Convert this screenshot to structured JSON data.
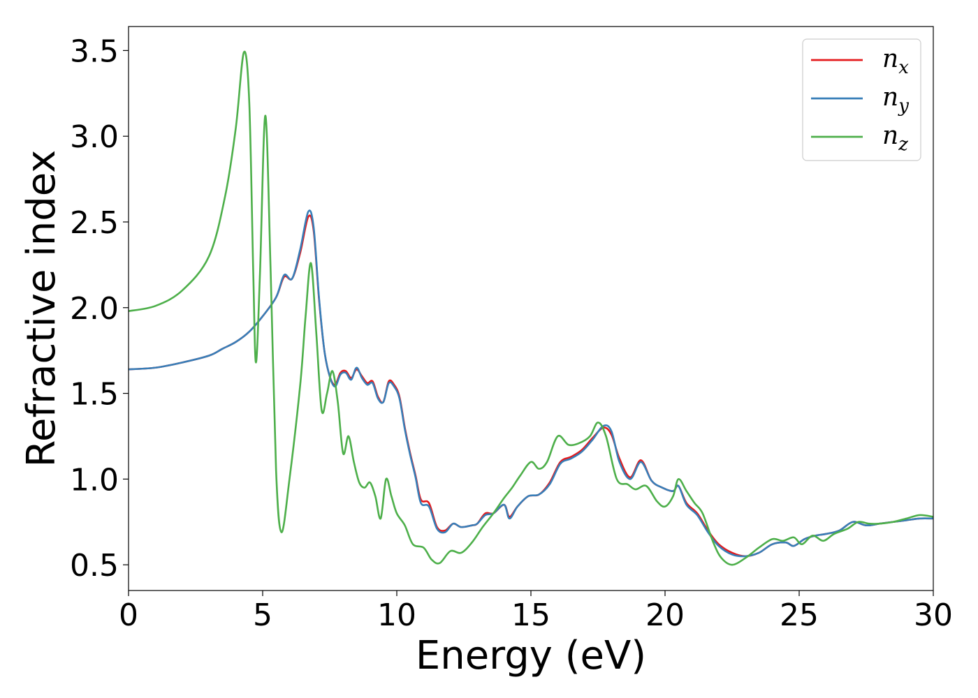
{
  "chart_data": {
    "type": "line",
    "xlabel": "Energy (eV)",
    "ylabel": "Refractive index",
    "xlim": [
      0,
      30
    ],
    "ylim": [
      0.35,
      3.64
    ],
    "xticks": [
      0,
      5,
      10,
      15,
      20,
      25,
      30
    ],
    "xtick_labels": [
      "0",
      "5",
      "10",
      "15",
      "20",
      "25",
      "30"
    ],
    "yticks": [
      0.5,
      1.0,
      1.5,
      2.0,
      2.5,
      3.0,
      3.5
    ],
    "ytick_labels": [
      "0.5",
      "1.0",
      "1.5",
      "2.0",
      "2.5",
      "3.0",
      "3.5"
    ],
    "grid": false,
    "legend_position": "top-right",
    "series": [
      {
        "name": "n_x",
        "legend_main": "n",
        "legend_sub": "x",
        "color": "#e41a1c",
        "points": [
          [
            0,
            1.64
          ],
          [
            1,
            1.65
          ],
          [
            2,
            1.68
          ],
          [
            3,
            1.72
          ],
          [
            3.5,
            1.76
          ],
          [
            4,
            1.8
          ],
          [
            4.5,
            1.86
          ],
          [
            5,
            1.95
          ],
          [
            5.5,
            2.06
          ],
          [
            5.8,
            2.18
          ],
          [
            6.1,
            2.17
          ],
          [
            6.4,
            2.32
          ],
          [
            6.7,
            2.53
          ],
          [
            6.9,
            2.45
          ],
          [
            7.1,
            2.05
          ],
          [
            7.3,
            1.75
          ],
          [
            7.5,
            1.6
          ],
          [
            7.7,
            1.55
          ],
          [
            7.9,
            1.62
          ],
          [
            8.1,
            1.63
          ],
          [
            8.3,
            1.59
          ],
          [
            8.5,
            1.64
          ],
          [
            8.7,
            1.6
          ],
          [
            8.9,
            1.56
          ],
          [
            9.1,
            1.57
          ],
          [
            9.3,
            1.48
          ],
          [
            9.5,
            1.45
          ],
          [
            9.7,
            1.57
          ],
          [
            9.9,
            1.55
          ],
          [
            10.1,
            1.48
          ],
          [
            10.3,
            1.3
          ],
          [
            10.5,
            1.15
          ],
          [
            10.7,
            1.02
          ],
          [
            10.9,
            0.88
          ],
          [
            11.2,
            0.86
          ],
          [
            11.5,
            0.72
          ],
          [
            11.8,
            0.7
          ],
          [
            12.1,
            0.74
          ],
          [
            12.4,
            0.72
          ],
          [
            12.8,
            0.73
          ],
          [
            13.0,
            0.74
          ],
          [
            13.3,
            0.8
          ],
          [
            13.6,
            0.8
          ],
          [
            14.0,
            0.85
          ],
          [
            14.2,
            0.78
          ],
          [
            14.5,
            0.84
          ],
          [
            14.9,
            0.9
          ],
          [
            15.3,
            0.91
          ],
          [
            15.7,
            0.98
          ],
          [
            16.1,
            1.1
          ],
          [
            16.5,
            1.13
          ],
          [
            16.9,
            1.17
          ],
          [
            17.3,
            1.24
          ],
          [
            17.7,
            1.3
          ],
          [
            18.0,
            1.26
          ],
          [
            18.3,
            1.12
          ],
          [
            18.7,
            1.01
          ],
          [
            19.1,
            1.11
          ],
          [
            19.5,
            0.99
          ],
          [
            19.9,
            0.95
          ],
          [
            20.3,
            0.93
          ],
          [
            20.5,
            0.96
          ],
          [
            20.8,
            0.86
          ],
          [
            21.2,
            0.8
          ],
          [
            21.6,
            0.7
          ],
          [
            22.0,
            0.62
          ],
          [
            22.5,
            0.57
          ],
          [
            23.0,
            0.55
          ],
          [
            23.5,
            0.57
          ],
          [
            24.0,
            0.62
          ],
          [
            24.5,
            0.63
          ],
          [
            24.8,
            0.61
          ],
          [
            25.2,
            0.65
          ],
          [
            25.6,
            0.67
          ],
          [
            26.0,
            0.68
          ],
          [
            26.5,
            0.7
          ],
          [
            27.0,
            0.75
          ],
          [
            27.5,
            0.73
          ],
          [
            28.0,
            0.74
          ],
          [
            28.5,
            0.75
          ],
          [
            29.0,
            0.76
          ],
          [
            29.5,
            0.77
          ],
          [
            30.0,
            0.77
          ]
        ]
      },
      {
        "name": "n_y",
        "legend_main": "n",
        "legend_sub": "y",
        "color": "#377eb8",
        "points": [
          [
            0,
            1.64
          ],
          [
            1,
            1.65
          ],
          [
            2,
            1.68
          ],
          [
            3,
            1.72
          ],
          [
            3.5,
            1.76
          ],
          [
            4,
            1.8
          ],
          [
            4.5,
            1.86
          ],
          [
            5,
            1.95
          ],
          [
            5.5,
            2.06
          ],
          [
            5.8,
            2.19
          ],
          [
            6.1,
            2.17
          ],
          [
            6.4,
            2.34
          ],
          [
            6.7,
            2.56
          ],
          [
            6.9,
            2.47
          ],
          [
            7.1,
            2.06
          ],
          [
            7.3,
            1.75
          ],
          [
            7.5,
            1.6
          ],
          [
            7.7,
            1.54
          ],
          [
            7.9,
            1.61
          ],
          [
            8.1,
            1.62
          ],
          [
            8.3,
            1.58
          ],
          [
            8.5,
            1.65
          ],
          [
            8.7,
            1.59
          ],
          [
            8.9,
            1.55
          ],
          [
            9.1,
            1.56
          ],
          [
            9.3,
            1.47
          ],
          [
            9.5,
            1.45
          ],
          [
            9.7,
            1.56
          ],
          [
            9.9,
            1.54
          ],
          [
            10.1,
            1.47
          ],
          [
            10.3,
            1.29
          ],
          [
            10.5,
            1.14
          ],
          [
            10.7,
            1.01
          ],
          [
            10.9,
            0.86
          ],
          [
            11.2,
            0.84
          ],
          [
            11.5,
            0.71
          ],
          [
            11.8,
            0.69
          ],
          [
            12.1,
            0.74
          ],
          [
            12.4,
            0.72
          ],
          [
            12.8,
            0.73
          ],
          [
            13.0,
            0.74
          ],
          [
            13.3,
            0.79
          ],
          [
            13.6,
            0.8
          ],
          [
            14.0,
            0.85
          ],
          [
            14.2,
            0.77
          ],
          [
            14.5,
            0.84
          ],
          [
            14.9,
            0.9
          ],
          [
            15.3,
            0.91
          ],
          [
            15.7,
            0.97
          ],
          [
            16.1,
            1.09
          ],
          [
            16.5,
            1.12
          ],
          [
            16.9,
            1.16
          ],
          [
            17.3,
            1.23
          ],
          [
            17.7,
            1.31
          ],
          [
            18.0,
            1.28
          ],
          [
            18.3,
            1.1
          ],
          [
            18.7,
            1.0
          ],
          [
            19.1,
            1.1
          ],
          [
            19.5,
            0.99
          ],
          [
            19.9,
            0.95
          ],
          [
            20.3,
            0.93
          ],
          [
            20.5,
            0.96
          ],
          [
            20.8,
            0.85
          ],
          [
            21.2,
            0.79
          ],
          [
            21.6,
            0.69
          ],
          [
            22.0,
            0.61
          ],
          [
            22.5,
            0.56
          ],
          [
            23.0,
            0.55
          ],
          [
            23.5,
            0.57
          ],
          [
            24.0,
            0.62
          ],
          [
            24.5,
            0.63
          ],
          [
            24.8,
            0.61
          ],
          [
            25.2,
            0.65
          ],
          [
            25.6,
            0.67
          ],
          [
            26.0,
            0.68
          ],
          [
            26.5,
            0.7
          ],
          [
            27.0,
            0.75
          ],
          [
            27.5,
            0.73
          ],
          [
            28.0,
            0.74
          ],
          [
            28.5,
            0.75
          ],
          [
            29.0,
            0.76
          ],
          [
            29.5,
            0.77
          ],
          [
            30.0,
            0.77
          ]
        ]
      },
      {
        "name": "n_z",
        "legend_main": "n",
        "legend_sub": "z",
        "color": "#4daf4a",
        "points": [
          [
            0,
            1.98
          ],
          [
            1,
            2.01
          ],
          [
            2,
            2.1
          ],
          [
            3,
            2.3
          ],
          [
            3.6,
            2.65
          ],
          [
            4.0,
            3.05
          ],
          [
            4.3,
            3.49
          ],
          [
            4.5,
            3.2
          ],
          [
            4.65,
            2.2
          ],
          [
            4.75,
            1.68
          ],
          [
            4.9,
            2.2
          ],
          [
            5.1,
            3.12
          ],
          [
            5.3,
            2.2
          ],
          [
            5.5,
            1.05
          ],
          [
            5.7,
            0.69
          ],
          [
            6.0,
            1.0
          ],
          [
            6.4,
            1.55
          ],
          [
            6.6,
            1.95
          ],
          [
            6.8,
            2.26
          ],
          [
            7.0,
            1.85
          ],
          [
            7.2,
            1.4
          ],
          [
            7.4,
            1.5
          ],
          [
            7.6,
            1.63
          ],
          [
            7.8,
            1.45
          ],
          [
            8.0,
            1.15
          ],
          [
            8.2,
            1.25
          ],
          [
            8.4,
            1.1
          ],
          [
            8.6,
            0.98
          ],
          [
            8.8,
            0.95
          ],
          [
            9.0,
            0.98
          ],
          [
            9.2,
            0.9
          ],
          [
            9.4,
            0.77
          ],
          [
            9.6,
            1.0
          ],
          [
            9.8,
            0.9
          ],
          [
            10.0,
            0.8
          ],
          [
            10.3,
            0.73
          ],
          [
            10.6,
            0.62
          ],
          [
            11.0,
            0.6
          ],
          [
            11.3,
            0.53
          ],
          [
            11.6,
            0.51
          ],
          [
            12.0,
            0.58
          ],
          [
            12.4,
            0.57
          ],
          [
            12.8,
            0.63
          ],
          [
            13.2,
            0.72
          ],
          [
            13.6,
            0.8
          ],
          [
            14.0,
            0.89
          ],
          [
            14.3,
            0.95
          ],
          [
            14.6,
            1.02
          ],
          [
            15.0,
            1.1
          ],
          [
            15.3,
            1.06
          ],
          [
            15.6,
            1.1
          ],
          [
            16.0,
            1.25
          ],
          [
            16.4,
            1.2
          ],
          [
            16.8,
            1.21
          ],
          [
            17.2,
            1.25
          ],
          [
            17.5,
            1.33
          ],
          [
            17.8,
            1.25
          ],
          [
            18.2,
            1.0
          ],
          [
            18.6,
            0.97
          ],
          [
            18.9,
            0.94
          ],
          [
            19.3,
            0.96
          ],
          [
            19.7,
            0.87
          ],
          [
            20.0,
            0.84
          ],
          [
            20.3,
            0.9
          ],
          [
            20.5,
            1.0
          ],
          [
            20.8,
            0.93
          ],
          [
            21.1,
            0.86
          ],
          [
            21.4,
            0.8
          ],
          [
            21.8,
            0.63
          ],
          [
            22.1,
            0.54
          ],
          [
            22.5,
            0.5
          ],
          [
            23.0,
            0.54
          ],
          [
            23.5,
            0.6
          ],
          [
            24.0,
            0.65
          ],
          [
            24.4,
            0.64
          ],
          [
            24.8,
            0.66
          ],
          [
            25.1,
            0.62
          ],
          [
            25.5,
            0.67
          ],
          [
            25.9,
            0.64
          ],
          [
            26.3,
            0.68
          ],
          [
            26.8,
            0.71
          ],
          [
            27.2,
            0.75
          ],
          [
            27.6,
            0.74
          ],
          [
            28.0,
            0.74
          ],
          [
            28.5,
            0.75
          ],
          [
            29.0,
            0.77
          ],
          [
            29.5,
            0.79
          ],
          [
            30.0,
            0.78
          ]
        ]
      }
    ]
  }
}
